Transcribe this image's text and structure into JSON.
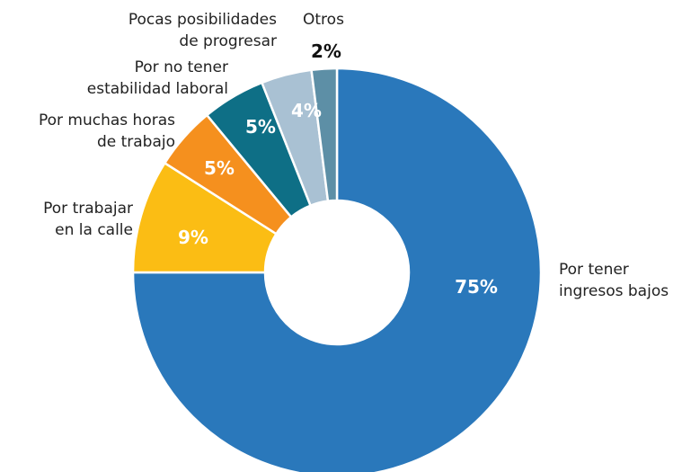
{
  "chart_data": {
    "type": "donut",
    "categories": [
      "Por tener\ningresos bajos",
      "Por trabajar\nen la calle",
      "Por muchas horas\nde trabajo",
      "Por no tener\nestabilidad laboral",
      "Pocas posibilidades\nde progresar",
      "Otros"
    ],
    "values": [
      75,
      9,
      5,
      5,
      4,
      2
    ],
    "value_labels": [
      "75%",
      "9%",
      "5%",
      "5%",
      "4%",
      "2%"
    ],
    "colors": [
      "#2a78bb",
      "#fbbd14",
      "#f5901e",
      "#0e6f86",
      "#a9c1d3",
      "#5d8fa6"
    ]
  }
}
